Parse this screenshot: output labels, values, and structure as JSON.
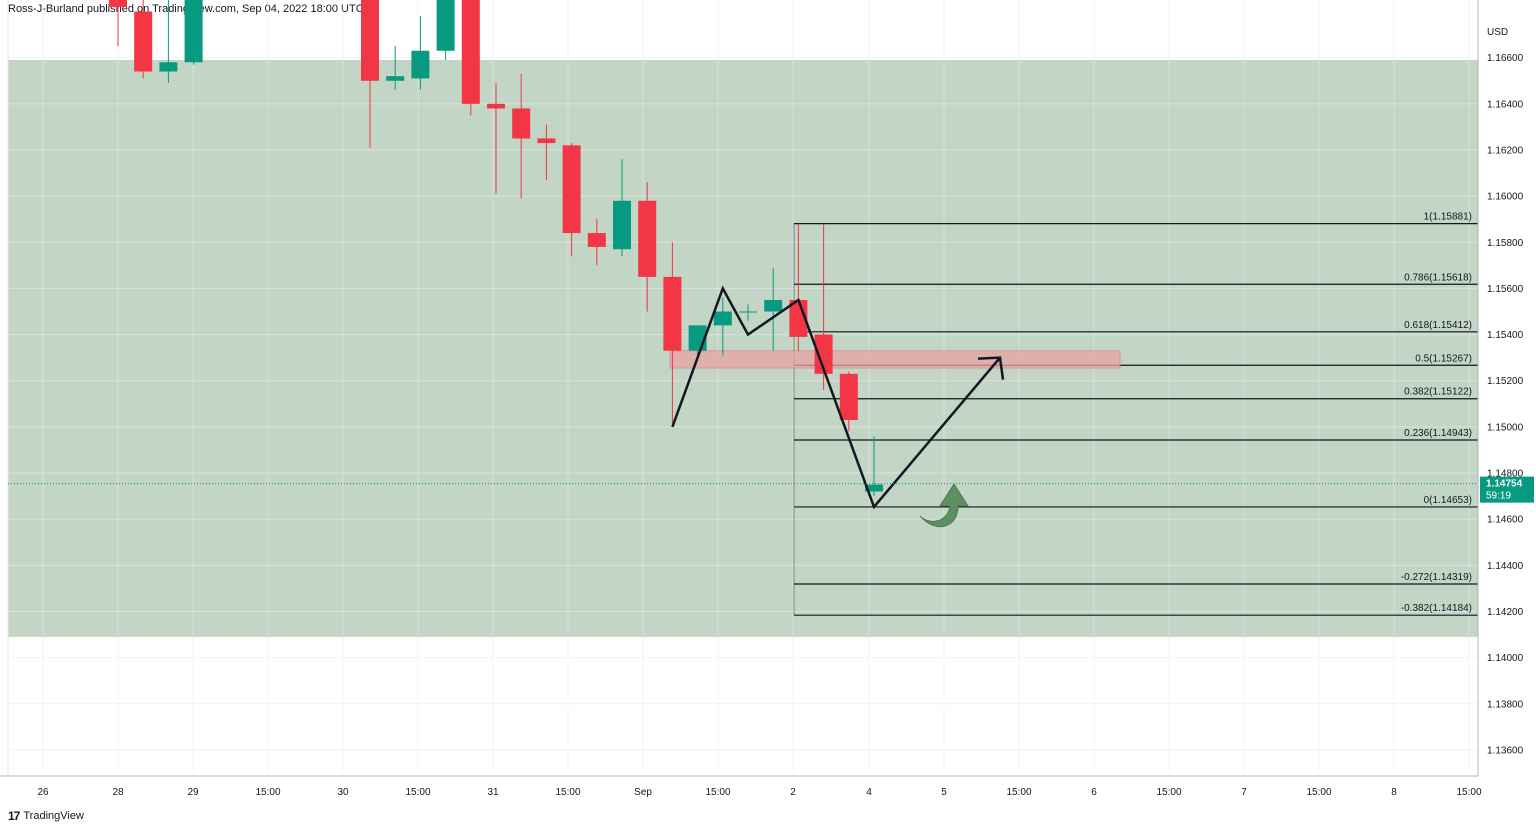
{
  "header": {
    "text": "Ross-J-Burland published on TradingView.com, Sep 04, 2022 18:00 UTC-6"
  },
  "footer": {
    "logo": "17",
    "brand": "TradingView"
  },
  "colors": {
    "up": "#089981",
    "down": "#f23645",
    "zone": "#c3d5c4",
    "resistance_band": "#e8a3a3",
    "arrow_green": "#5e8f62",
    "pattern_line": "#131722"
  },
  "chart_data": {
    "type": "candlestick",
    "currency": "USD",
    "ylim": [
      1.135,
      1.1685
    ],
    "y_ticks": [
      "1.16600",
      "1.16400",
      "1.16200",
      "1.16000",
      "1.15800",
      "1.15600",
      "1.15400",
      "1.15200",
      "1.15000",
      "1.14800",
      "1.14600",
      "1.14400",
      "1.14200",
      "1.14000",
      "1.13800",
      "1.13600"
    ],
    "x_ticks": [
      "26",
      "28",
      "29",
      "15:00",
      "30",
      "15:00",
      "31",
      "15:00",
      "Sep",
      "15:00",
      "2",
      "4",
      "5",
      "15:00",
      "6",
      "15:00",
      "7",
      "15:00",
      "8",
      "15:00"
    ],
    "zone": {
      "from": 1.1409,
      "to": 1.1659
    },
    "resistance_band": {
      "from": 1.15255,
      "to": 1.1533
    },
    "candles": [
      {
        "x": 0,
        "o": 1.16875,
        "h": 1.1695,
        "l": 1.1665,
        "c": 1.1682
      },
      {
        "x": 1,
        "o": 1.168,
        "h": 1.1695,
        "l": 1.1651,
        "c": 1.1654
      },
      {
        "x": 2,
        "o": 1.1654,
        "h": 1.17,
        "l": 1.1649,
        "c": 1.1658
      },
      {
        "x": 3,
        "o": 1.1658,
        "h": 1.17,
        "l": 1.1657,
        "c": 1.1695
      },
      {
        "x": 10,
        "o": 1.169,
        "h": 1.1695,
        "l": 1.1621,
        "c": 1.165
      },
      {
        "x": 11,
        "o": 1.165,
        "h": 1.1665,
        "l": 1.1646,
        "c": 1.1652
      },
      {
        "x": 12,
        "o": 1.1651,
        "h": 1.1678,
        "l": 1.1646,
        "c": 1.1663
      },
      {
        "x": 13,
        "o": 1.1663,
        "h": 1.169,
        "l": 1.1659,
        "c": 1.1685
      },
      {
        "x": 14,
        "o": 1.1685,
        "h": 1.169,
        "l": 1.1635,
        "c": 1.164
      },
      {
        "x": 15,
        "o": 1.164,
        "h": 1.1649,
        "l": 1.1601,
        "c": 1.1638
      },
      {
        "x": 16,
        "o": 1.1638,
        "h": 1.1653,
        "l": 1.1599,
        "c": 1.1625
      },
      {
        "x": 17,
        "o": 1.1625,
        "h": 1.1631,
        "l": 1.1607,
        "c": 1.1623
      },
      {
        "x": 18,
        "o": 1.1622,
        "h": 1.1623,
        "l": 1.1574,
        "c": 1.1584
      },
      {
        "x": 19,
        "o": 1.1584,
        "h": 1.159,
        "l": 1.157,
        "c": 1.1578
      },
      {
        "x": 20,
        "o": 1.1577,
        "h": 1.1616,
        "l": 1.1574,
        "c": 1.1598
      },
      {
        "x": 21,
        "o": 1.1598,
        "h": 1.1606,
        "l": 1.155,
        "c": 1.1565
      },
      {
        "x": 22,
        "o": 1.1565,
        "h": 1.158,
        "l": 1.15,
        "c": 1.1533
      },
      {
        "x": 23,
        "o": 1.1533,
        "h": 1.1542,
        "l": 1.153,
        "c": 1.1544
      },
      {
        "x": 24,
        "o": 1.1544,
        "h": 1.1556,
        "l": 1.1531,
        "c": 1.155
      },
      {
        "x": 25,
        "o": 1.155,
        "h": 1.1553,
        "l": 1.1546,
        "c": 1.155
      },
      {
        "x": 26,
        "o": 1.155,
        "h": 1.1569,
        "l": 1.1533,
        "c": 1.1555
      },
      {
        "x": 27,
        "o": 1.1555,
        "h": 1.1588,
        "l": 1.1533,
        "c": 1.1539
      },
      {
        "x": 28,
        "o": 1.154,
        "h": 1.1588,
        "l": 1.1516,
        "c": 1.1523
      },
      {
        "x": 29,
        "o": 1.1523,
        "h": 1.1524,
        "l": 1.1498,
        "c": 1.1503
      },
      {
        "x": 30,
        "o": 1.1472,
        "h": 1.1496,
        "l": 1.147,
        "c": 1.1475
      }
    ],
    "fib_levels": [
      {
        "label": "1(1.15881)",
        "value": 1.15881
      },
      {
        "label": "0.786(1.15618)",
        "value": 1.15618
      },
      {
        "label": "0.618(1.15412)",
        "value": 1.15412
      },
      {
        "label": "0.5(1.15267)",
        "value": 1.15267
      },
      {
        "label": "0.382(1.15122)",
        "value": 1.15122
      },
      {
        "label": "0.236(1.14943)",
        "value": 1.14943
      },
      {
        "label": "0(1.14653)",
        "value": 1.14653
      },
      {
        "label": "-0.272(1.14319)",
        "value": 1.14319
      },
      {
        "label": "-0.382(1.14184)",
        "value": 1.14184
      }
    ],
    "pattern_path": [
      {
        "x": 22,
        "y": 1.15
      },
      {
        "x": 24,
        "y": 1.156
      },
      {
        "x": 25,
        "y": 1.154
      },
      {
        "x": 27,
        "y": 1.1555
      },
      {
        "x": 30,
        "y": 1.14653
      },
      {
        "x": 35,
        "y": 1.153
      }
    ],
    "last_price": {
      "price": "1.14754",
      "countdown": "59:19",
      "value": 1.14754
    }
  }
}
